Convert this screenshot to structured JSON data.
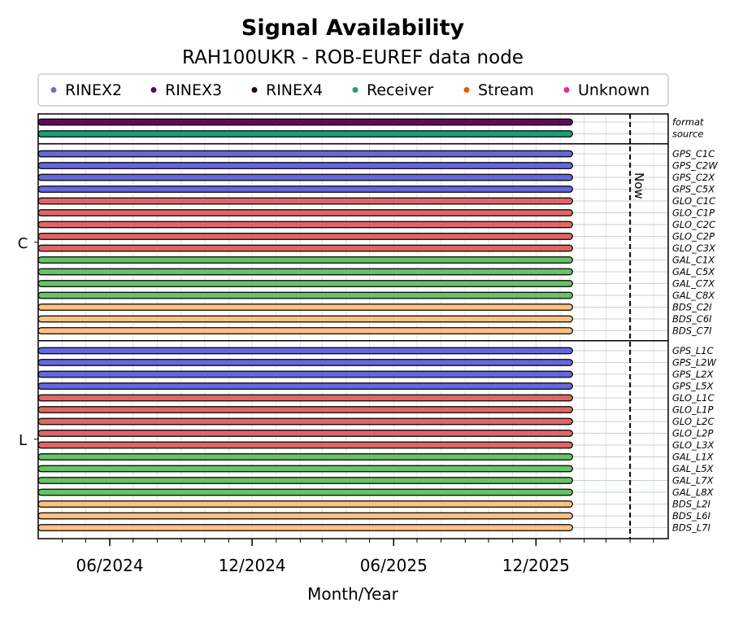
{
  "chart_data": {
    "type": "bar",
    "title": "Signal Availability",
    "subtitle": "RAH100UKR - ROB-EUREF data node",
    "xlabel": "Month/Year",
    "x_start": "2024-03-01",
    "x_end": "2026-05-20",
    "x_ticks": [
      {
        "date": "2024-06-01",
        "label": "06/2024"
      },
      {
        "date": "2024-12-01",
        "label": "12/2024"
      },
      {
        "date": "2025-06-01",
        "label": "06/2025"
      },
      {
        "date": "2025-12-01",
        "label": "12/2025"
      }
    ],
    "now_date": "2026-04-01",
    "now_label": "Now",
    "legend_placement": "top",
    "legend": [
      {
        "label": "RINEX2",
        "color": "#7570b3"
      },
      {
        "label": "RINEX3",
        "color": "#5e0a5a"
      },
      {
        "label": "RINEX4",
        "color": "#2b0018"
      },
      {
        "label": "Receiver",
        "color": "#1b9e77"
      },
      {
        "label": "Stream",
        "color": "#d95f02"
      },
      {
        "label": "Unknown",
        "color": "#e7298a"
      }
    ],
    "constellation_colors": {
      "GPS": "#6666dd",
      "GLO": "#e06666",
      "GAL": "#66c266",
      "BDS": "#ffc080"
    },
    "groups": [
      {
        "label": "",
        "rows": [
          {
            "name": "format",
            "color": "#5e0a5a",
            "start": "2024-03-01",
            "end": "2026-01-17"
          },
          {
            "name": "source",
            "color": "#1b9e77",
            "start": "2024-03-01",
            "end": "2026-01-17"
          }
        ]
      },
      {
        "label": "C",
        "rows": [
          {
            "name": "GPS_C1C",
            "sys": "GPS",
            "start": "2024-03-01",
            "end": "2026-01-17"
          },
          {
            "name": "GPS_C2W",
            "sys": "GPS",
            "start": "2024-03-01",
            "end": "2026-01-17"
          },
          {
            "name": "GPS_C2X",
            "sys": "GPS",
            "start": "2024-03-01",
            "end": "2026-01-17"
          },
          {
            "name": "GPS_C5X",
            "sys": "GPS",
            "start": "2024-03-01",
            "end": "2026-01-17"
          },
          {
            "name": "GLO_C1C",
            "sys": "GLO",
            "start": "2024-03-01",
            "end": "2026-01-17"
          },
          {
            "name": "GLO_C1P",
            "sys": "GLO",
            "start": "2024-03-01",
            "end": "2026-01-17"
          },
          {
            "name": "GLO_C2C",
            "sys": "GLO",
            "start": "2024-03-01",
            "end": "2026-01-17"
          },
          {
            "name": "GLO_C2P",
            "sys": "GLO",
            "start": "2024-03-01",
            "end": "2026-01-17"
          },
          {
            "name": "GLO_C3X",
            "sys": "GLO",
            "start": "2024-03-01",
            "end": "2026-01-17"
          },
          {
            "name": "GAL_C1X",
            "sys": "GAL",
            "start": "2024-03-01",
            "end": "2026-01-17"
          },
          {
            "name": "GAL_C5X",
            "sys": "GAL",
            "start": "2024-03-01",
            "end": "2026-01-17"
          },
          {
            "name": "GAL_C7X",
            "sys": "GAL",
            "start": "2024-03-01",
            "end": "2026-01-17"
          },
          {
            "name": "GAL_C8X",
            "sys": "GAL",
            "start": "2024-03-01",
            "end": "2026-01-17"
          },
          {
            "name": "BDS_C2I",
            "sys": "BDS",
            "start": "2024-03-01",
            "end": "2026-01-17"
          },
          {
            "name": "BDS_C6I",
            "sys": "BDS",
            "start": "2024-03-01",
            "end": "2026-01-17"
          },
          {
            "name": "BDS_C7I",
            "sys": "BDS",
            "start": "2024-03-01",
            "end": "2026-01-17"
          }
        ]
      },
      {
        "label": "L",
        "rows": [
          {
            "name": "GPS_L1C",
            "sys": "GPS",
            "start": "2024-03-01",
            "end": "2026-01-17"
          },
          {
            "name": "GPS_L2W",
            "sys": "GPS",
            "start": "2024-03-01",
            "end": "2026-01-17"
          },
          {
            "name": "GPS_L2X",
            "sys": "GPS",
            "start": "2024-03-01",
            "end": "2026-01-17"
          },
          {
            "name": "GPS_L5X",
            "sys": "GPS",
            "start": "2024-03-01",
            "end": "2026-01-17"
          },
          {
            "name": "GLO_L1C",
            "sys": "GLO",
            "start": "2024-03-01",
            "end": "2026-01-17"
          },
          {
            "name": "GLO_L1P",
            "sys": "GLO",
            "start": "2024-03-01",
            "end": "2026-01-17"
          },
          {
            "name": "GLO_L2C",
            "sys": "GLO",
            "start": "2024-03-01",
            "end": "2026-01-17"
          },
          {
            "name": "GLO_L2P",
            "sys": "GLO",
            "start": "2024-03-01",
            "end": "2026-01-17"
          },
          {
            "name": "GLO_L3X",
            "sys": "GLO",
            "start": "2024-03-01",
            "end": "2026-01-17"
          },
          {
            "name": "GAL_L1X",
            "sys": "GAL",
            "start": "2024-03-01",
            "end": "2026-01-17"
          },
          {
            "name": "GAL_L5X",
            "sys": "GAL",
            "start": "2024-03-01",
            "end": "2026-01-17"
          },
          {
            "name": "GAL_L7X",
            "sys": "GAL",
            "start": "2024-03-01",
            "end": "2026-01-17"
          },
          {
            "name": "GAL_L8X",
            "sys": "GAL",
            "start": "2024-03-01",
            "end": "2026-01-17"
          },
          {
            "name": "BDS_L2I",
            "sys": "BDS",
            "start": "2024-03-01",
            "end": "2026-01-17"
          },
          {
            "name": "BDS_L6I",
            "sys": "BDS",
            "start": "2024-03-01",
            "end": "2026-01-17"
          },
          {
            "name": "BDS_L7I",
            "sys": "BDS",
            "start": "2024-03-01",
            "end": "2026-01-17"
          }
        ]
      }
    ]
  }
}
